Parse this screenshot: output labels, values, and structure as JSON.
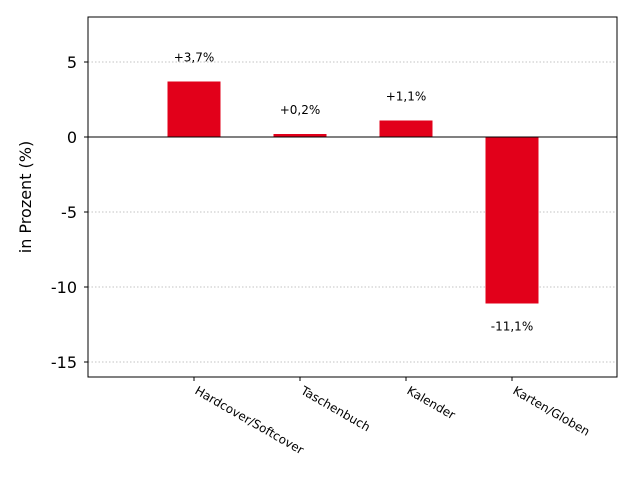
{
  "chart_data": {
    "type": "bar",
    "categories": [
      "Hardcover/Softcover",
      "Taschenbuch",
      "Kalender",
      "Karten/Globen"
    ],
    "series": [
      {
        "values": [
          3.7,
          0.2,
          1.1,
          -11.1
        ]
      }
    ],
    "data_labels": [
      "+3,7%",
      "+0,2%",
      "+1,1%",
      "-11,1%"
    ],
    "title": "",
    "xlabel": "",
    "ylabel": "in Prozent (%)",
    "ylim": [
      -16,
      8
    ],
    "yticks": [
      5,
      0,
      -5,
      -10,
      -15
    ],
    "ytick_labels": [
      "5",
      "0",
      "-5",
      "-10",
      "-15"
    ],
    "grid": "horizontal-dotted",
    "legend": "none",
    "bar_color": "#e2001a",
    "zero_line": true
  }
}
